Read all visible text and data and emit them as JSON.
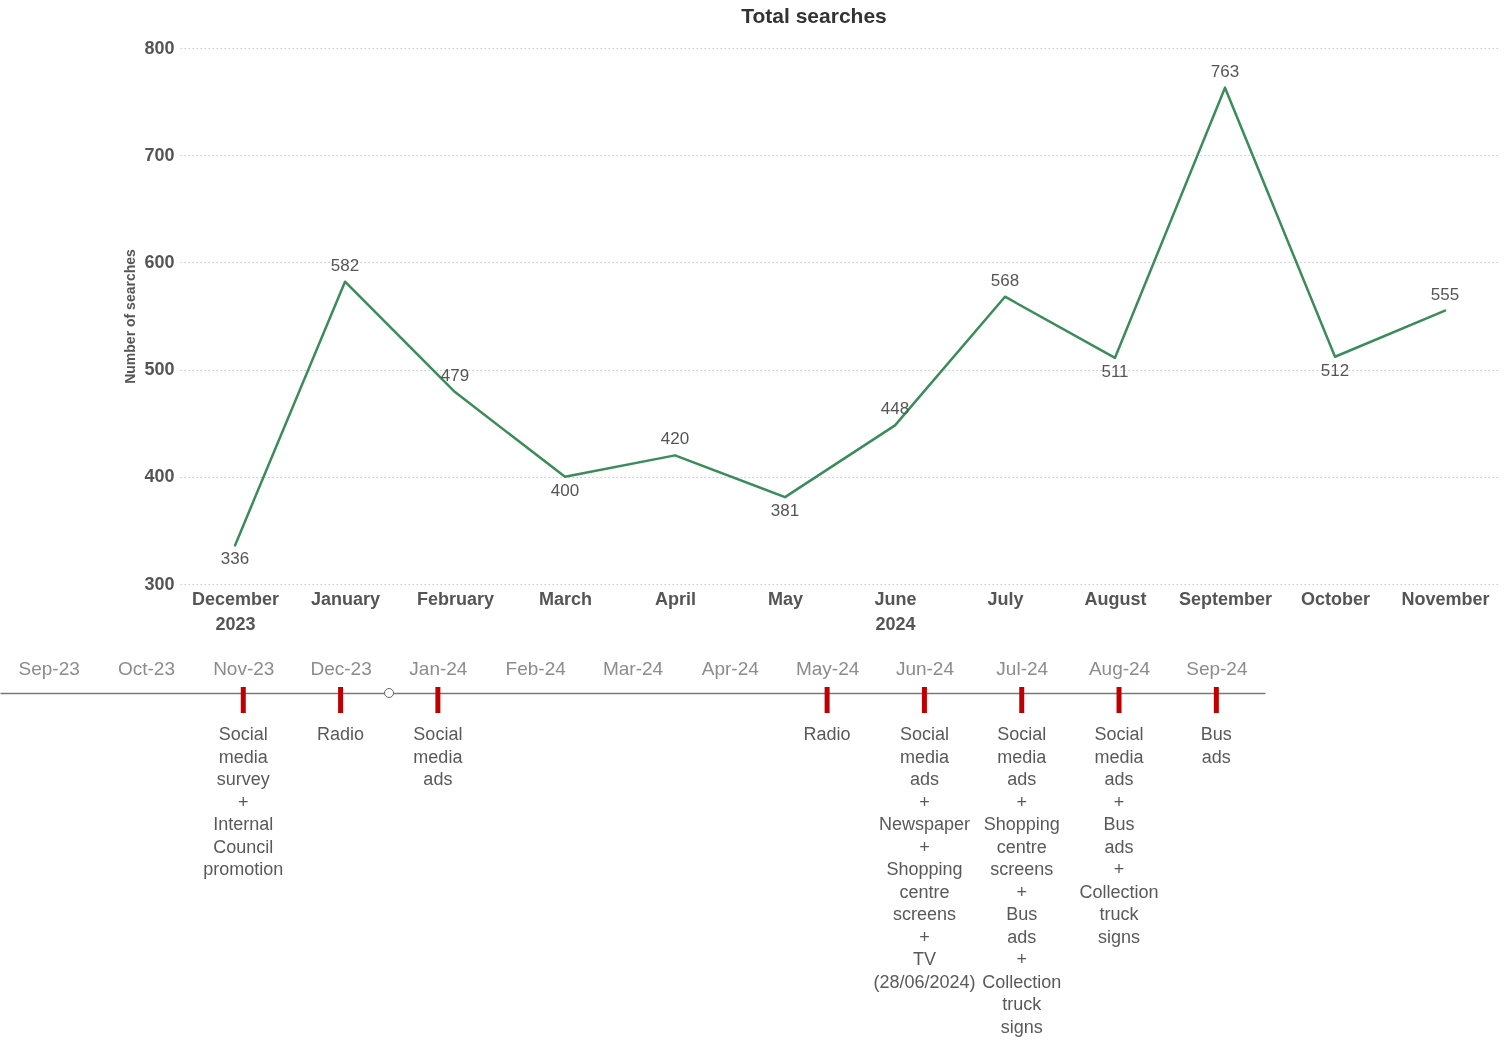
{
  "chart_data": [
    {
      "type": "line",
      "title": "Total searches",
      "ylabel": "Number of searches",
      "categories": [
        "December 2023",
        "January",
        "February",
        "March",
        "April",
        "May",
        "June 2024",
        "July",
        "August",
        "September",
        "October",
        "November"
      ],
      "series": [
        {
          "color": "#3b8c5a",
          "values": [
            336,
            582,
            479,
            400,
            420,
            381,
            448,
            568,
            511,
            763,
            512,
            555
          ]
        }
      ],
      "ylim": [
        300,
        800
      ],
      "yticks": [
        300,
        400,
        500,
        600,
        700,
        800
      ],
      "grid": "y",
      "data_labels": true
    },
    {
      "type": "other",
      "categories": [
        "Sep-23",
        "Oct-23",
        "Nov-23",
        "Dec-23",
        "Jan-24",
        "Feb-24",
        "Mar-24",
        "Apr-24",
        "May-24",
        "Jun-24",
        "Jul-24",
        "Aug-24",
        "Sep-24"
      ],
      "annotations": [
        {
          "text": "Social media survey + Internal Council promotion",
          "x": "Nov-23"
        },
        {
          "text": "Radio",
          "x": "Dec-23"
        },
        {
          "text": "Social media ads",
          "x": "Jan-24"
        },
        {
          "text": "Radio",
          "x": "May-24"
        },
        {
          "text": "Social media ads + Newspaper + Shopping centre screens + TV (28/06/2024)",
          "x": "Jun-24"
        },
        {
          "text": "Social media ads + Shopping centre screens + Bus ads + Collection truck signs",
          "x": "Jul-24"
        },
        {
          "text": "Social media ads + Bus ads + Collection truck signs",
          "x": "Aug-24"
        },
        {
          "text": "Bus ads",
          "x": "Sep-24"
        }
      ]
    }
  ]
}
